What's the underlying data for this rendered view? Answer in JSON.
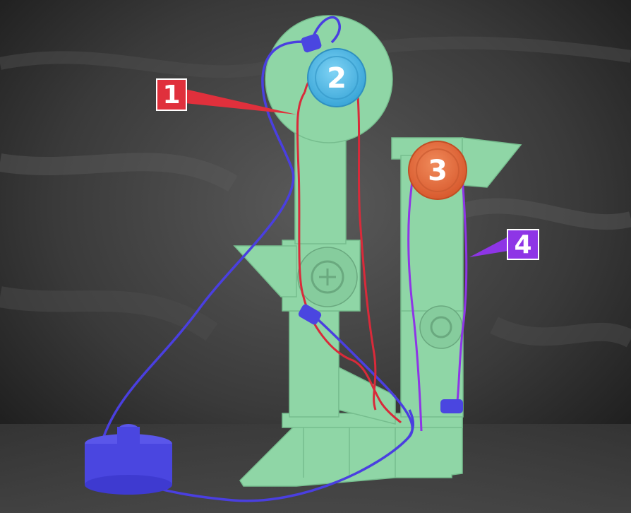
{
  "colors": {
    "background_dark": "#1c1c1c",
    "background_mid": "#4a4a4a",
    "structure_green": "#8fd6a6",
    "structure_green_dark": "#76bd8e",
    "rope_blue": "#4a3fe0",
    "rope_red": "#d92a3a",
    "rope_purple": "#8e35e6",
    "pulley_blue": "#4db8e8",
    "pulley_orange": "#e8683a",
    "label_red": "#e0303c",
    "label_purple": "#8e35e6",
    "weight_blue": "#4a46e0"
  },
  "pulleys": [
    {
      "id": "pulley-2",
      "number": "2"
    },
    {
      "id": "pulley-3",
      "number": "3"
    }
  ],
  "labels": [
    {
      "id": "label-1",
      "number": "1"
    },
    {
      "id": "label-4",
      "number": "4"
    }
  ]
}
